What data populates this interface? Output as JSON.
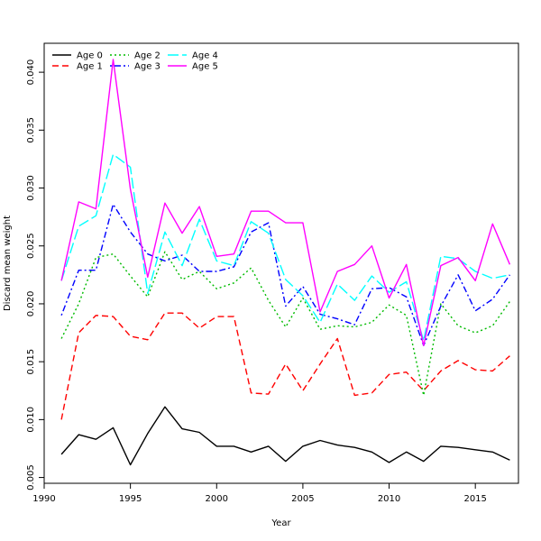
{
  "chart_data": {
    "type": "line",
    "xlabel": "Year",
    "ylabel": "Discard mean weight",
    "xlim": [
      1990,
      2017.5
    ],
    "ylim": [
      0.0045,
      0.0425
    ],
    "xticks": [
      1990,
      1995,
      2000,
      2005,
      2010,
      2015
    ],
    "yticks": [
      0.005,
      0.01,
      0.015,
      0.02,
      0.025,
      0.03,
      0.035,
      0.04
    ],
    "ytick_labels": [
      "0.005",
      "0.010",
      "0.015",
      "0.020",
      "0.025",
      "0.030",
      "0.035",
      "0.040"
    ],
    "legend_position": "top-left",
    "x": [
      1991,
      1992,
      1993,
      1994,
      1995,
      1996,
      1997,
      1998,
      1999,
      2000,
      2001,
      2002,
      2003,
      2004,
      2005,
      2006,
      2007,
      2008,
      2009,
      2010,
      2011,
      2012,
      2013,
      2014,
      2015,
      2016,
      2017
    ],
    "series": [
      {
        "name": "Age 0",
        "color": "#000000",
        "dash": "solid",
        "values": [
          0.007,
          0.0087,
          0.0083,
          0.0093,
          0.0061,
          0.0088,
          0.0111,
          0.0092,
          0.0089,
          0.0077,
          0.0077,
          0.0072,
          0.0077,
          0.0064,
          0.0077,
          0.0082,
          0.0078,
          0.0076,
          0.0072,
          0.0063,
          0.0072,
          0.0064,
          0.0077,
          0.0076,
          0.0074,
          0.0072,
          0.0065
        ]
      },
      {
        "name": "Age 1",
        "color": "#ff0000",
        "dash": "dashed",
        "values": [
          0.01,
          0.0175,
          0.019,
          0.0189,
          0.0172,
          0.0169,
          0.0192,
          0.0192,
          0.0179,
          0.0189,
          0.0189,
          0.0123,
          0.0122,
          0.0148,
          0.0125,
          0.0148,
          0.017,
          0.0121,
          0.0123,
          0.0139,
          0.0141,
          0.0125,
          0.0142,
          0.0151,
          0.0143,
          0.0142,
          0.0155
        ]
      },
      {
        "name": "Age 2",
        "color": "#00bb00",
        "dash": "dotted",
        "values": [
          0.017,
          0.02,
          0.024,
          0.0243,
          0.0224,
          0.0206,
          0.0245,
          0.0221,
          0.0228,
          0.0213,
          0.0218,
          0.0231,
          0.0203,
          0.018,
          0.0205,
          0.0178,
          0.0181,
          0.018,
          0.0184,
          0.0199,
          0.019,
          0.0121,
          0.02,
          0.0181,
          0.0175,
          0.0181,
          0.0202
        ]
      },
      {
        "name": "Age 3",
        "color": "#0000ff",
        "dash": "dotdash",
        "values": [
          0.019,
          0.0229,
          0.0229,
          0.0286,
          0.0262,
          0.0243,
          0.0237,
          0.0242,
          0.0228,
          0.0228,
          0.0232,
          0.0262,
          0.027,
          0.0198,
          0.0215,
          0.0191,
          0.0187,
          0.0182,
          0.0213,
          0.0214,
          0.0206,
          0.0164,
          0.0198,
          0.0225,
          0.0194,
          0.0204,
          0.0225
        ]
      },
      {
        "name": "Age 4",
        "color": "#00ffff",
        "dash": "longdash",
        "values": [
          0.022,
          0.0267,
          0.0276,
          0.0329,
          0.0318,
          0.0209,
          0.0262,
          0.0233,
          0.0273,
          0.0237,
          0.0233,
          0.0271,
          0.0261,
          0.0221,
          0.0207,
          0.0184,
          0.0217,
          0.0203,
          0.0224,
          0.021,
          0.0219,
          0.0168,
          0.0241,
          0.0239,
          0.0228,
          0.0222,
          0.0225
        ]
      },
      {
        "name": "Age 5",
        "color": "#ff00ff",
        "dash": "solid",
        "values": [
          0.022,
          0.0288,
          0.0282,
          0.0411,
          0.0299,
          0.0223,
          0.0287,
          0.0261,
          0.0284,
          0.0241,
          0.0243,
          0.028,
          0.028,
          0.027,
          0.027,
          0.0193,
          0.0228,
          0.0234,
          0.025,
          0.0205,
          0.0234,
          0.0164,
          0.0233,
          0.024,
          0.022,
          0.0269,
          0.0234
        ]
      }
    ]
  }
}
